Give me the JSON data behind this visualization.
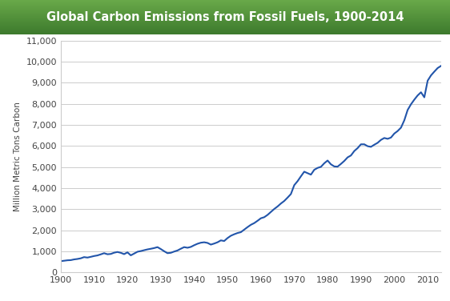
{
  "title": "Global Carbon Emissions from Fossil Fuels, 1900-2014",
  "ylabel": "Million Metric Tons Carbon",
  "title_color_light": "#6aaa4a",
  "title_color_dark": "#3d7a2d",
  "title_text_color": "#ffffff",
  "line_color": "#2255aa",
  "grid_color": "#cccccc",
  "plot_bg_color": "#ffffff",
  "outer_bg_color": "#ffffff",
  "spine_color": "#cccccc",
  "xlim": [
    1900,
    2014
  ],
  "ylim": [
    0,
    11000
  ],
  "yticks": [
    0,
    1000,
    2000,
    3000,
    4000,
    5000,
    6000,
    7000,
    8000,
    9000,
    10000,
    11000
  ],
  "xticks": [
    1900,
    1910,
    1920,
    1930,
    1940,
    1950,
    1960,
    1970,
    1980,
    1990,
    2000,
    2010
  ],
  "years": [
    1900,
    1901,
    1902,
    1903,
    1904,
    1905,
    1906,
    1907,
    1908,
    1909,
    1910,
    1911,
    1912,
    1913,
    1914,
    1915,
    1916,
    1917,
    1918,
    1919,
    1920,
    1921,
    1922,
    1923,
    1924,
    1925,
    1926,
    1927,
    1928,
    1929,
    1930,
    1931,
    1932,
    1933,
    1934,
    1935,
    1936,
    1937,
    1938,
    1939,
    1940,
    1941,
    1942,
    1943,
    1944,
    1945,
    1946,
    1947,
    1948,
    1949,
    1950,
    1951,
    1952,
    1953,
    1954,
    1955,
    1956,
    1957,
    1958,
    1959,
    1960,
    1961,
    1962,
    1963,
    1964,
    1965,
    1966,
    1967,
    1968,
    1969,
    1970,
    1971,
    1972,
    1973,
    1974,
    1975,
    1976,
    1977,
    1978,
    1979,
    1980,
    1981,
    1982,
    1983,
    1984,
    1985,
    1986,
    1987,
    1988,
    1989,
    1990,
    1991,
    1992,
    1993,
    1994,
    1995,
    1996,
    1997,
    1998,
    1999,
    2000,
    2001,
    2002,
    2003,
    2004,
    2005,
    2006,
    2007,
    2008,
    2009,
    2010,
    2011,
    2012,
    2013,
    2014
  ],
  "values": [
    534,
    554,
    575,
    583,
    617,
    638,
    669,
    726,
    704,
    739,
    778,
    806,
    857,
    912,
    862,
    876,
    935,
    970,
    930,
    867,
    952,
    810,
    894,
    981,
    1013,
    1054,
    1092,
    1122,
    1155,
    1200,
    1108,
    1005,
    913,
    931,
    990,
    1041,
    1124,
    1200,
    1170,
    1210,
    1290,
    1360,
    1410,
    1430,
    1400,
    1320,
    1370,
    1430,
    1520,
    1490,
    1630,
    1740,
    1810,
    1870,
    1910,
    2030,
    2150,
    2260,
    2340,
    2450,
    2570,
    2620,
    2730,
    2870,
    3010,
    3130,
    3270,
    3390,
    3550,
    3720,
    4140,
    4330,
    4560,
    4780,
    4710,
    4640,
    4870,
    4960,
    5010,
    5180,
    5310,
    5130,
    5030,
    5020,
    5150,
    5290,
    5460,
    5550,
    5760,
    5900,
    6080,
    6080,
    5990,
    5960,
    6060,
    6150,
    6290,
    6380,
    6340,
    6400,
    6590,
    6710,
    6870,
    7220,
    7710,
    7980,
    8200,
    8400,
    8550,
    8310,
    9100,
    9350,
    9530,
    9700,
    9800
  ]
}
